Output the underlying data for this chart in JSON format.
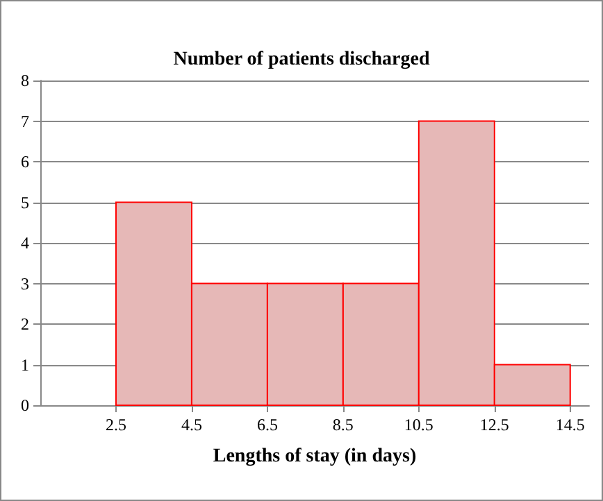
{
  "chart_data": {
    "type": "histogram",
    "title": "Number of patients discharged",
    "xlabel": "Lengths of stay (in days)",
    "bins": [
      2.5,
      4.5,
      6.5,
      8.5,
      10.5,
      12.5,
      14.5
    ],
    "values": [
      5,
      3,
      3,
      3,
      7,
      1
    ],
    "color": "#e6b8b7",
    "xlim": [
      0.5,
      15
    ],
    "xticks": [
      2.5,
      4.5,
      6.5,
      8.5,
      10.5,
      12.5,
      14.5
    ],
    "ylim": [
      0,
      8
    ],
    "yticks": [
      0,
      1,
      2,
      3,
      4,
      5,
      6,
      7,
      8
    ],
    "grid": "y"
  }
}
